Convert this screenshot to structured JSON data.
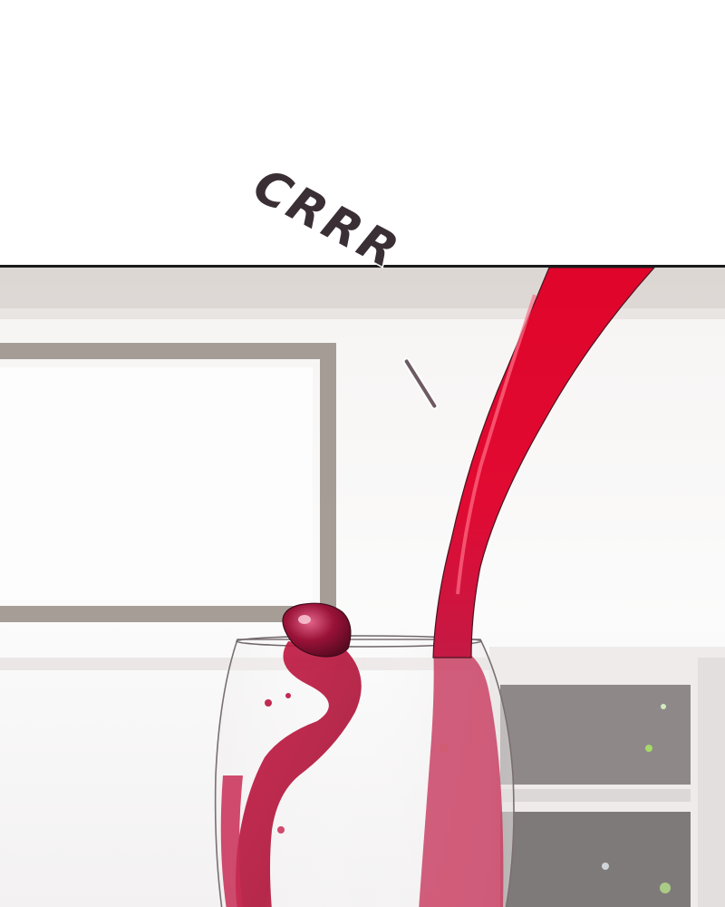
{
  "sound_effect": {
    "text": "CRRR"
  },
  "colors": {
    "wine": "#d9092c",
    "wine_dark": "#8e1436",
    "frame": "#8a7d76",
    "panel_border": "#1a1a1a",
    "sfx_text": "#3a2f34"
  },
  "scene": {
    "elements": [
      "wine-stream",
      "wine-glass",
      "wine-splash",
      "wine-droplet",
      "window-frame",
      "shelf"
    ]
  }
}
